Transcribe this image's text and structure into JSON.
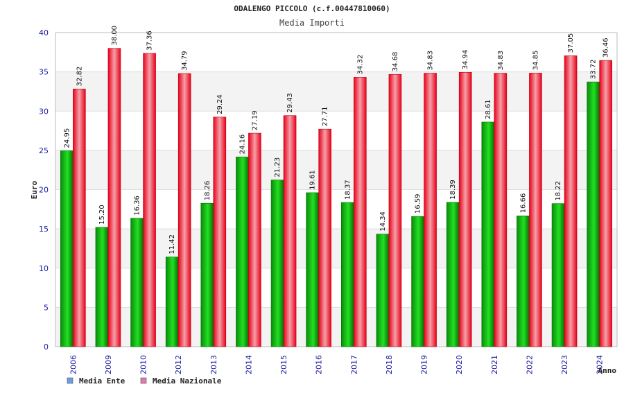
{
  "chart_data": {
    "type": "bar",
    "title": "ODALENGO PICCOLO (c.f.00447810060)",
    "subtitle": "Media Importi",
    "xlabel": "Anno",
    "ylabel": "Euro",
    "ylim": [
      0,
      40
    ],
    "yticks": [
      "0",
      "5",
      "10",
      "15",
      "20",
      "25",
      "30",
      "35",
      "40"
    ],
    "grid": true,
    "legend_position": "bottom-left",
    "categories": [
      "2006",
      "2009",
      "2010",
      "2012",
      "2013",
      "2014",
      "2015",
      "2016",
      "2017",
      "2018",
      "2019",
      "2020",
      "2021",
      "2022",
      "2023",
      "2024"
    ],
    "series": [
      {
        "name": "Media Ente",
        "values": [
          24.95,
          15.2,
          16.36,
          11.42,
          18.26,
          24.16,
          21.23,
          19.61,
          18.37,
          14.34,
          16.59,
          18.39,
          28.61,
          16.66,
          18.22,
          33.72
        ],
        "labels": [
          "24.95",
          "15.20",
          "16.36",
          "11.42",
          "18.26",
          "24.16",
          "21.23",
          "19.61",
          "18.37",
          "14.34",
          "16.59",
          "18.39",
          "28.61",
          "16.66",
          "18.22",
          "33.72"
        ],
        "color": "#00b000",
        "legend_color": "#6a9fe6"
      },
      {
        "name": "Media Nazionale",
        "values": [
          32.82,
          38.0,
          37.36,
          34.79,
          29.24,
          27.19,
          29.43,
          27.71,
          34.32,
          34.68,
          34.83,
          34.94,
          34.83,
          34.85,
          37.05,
          36.46
        ],
        "labels": [
          "32.82",
          "38.00",
          "37.36",
          "34.79",
          "29.24",
          "27.19",
          "29.43",
          "27.71",
          "34.32",
          "34.68",
          "34.83",
          "34.94",
          "34.83",
          "34.85",
          "37.05",
          "36.46"
        ],
        "color": "#e00010",
        "legend_color": "#e07ab0"
      }
    ]
  }
}
